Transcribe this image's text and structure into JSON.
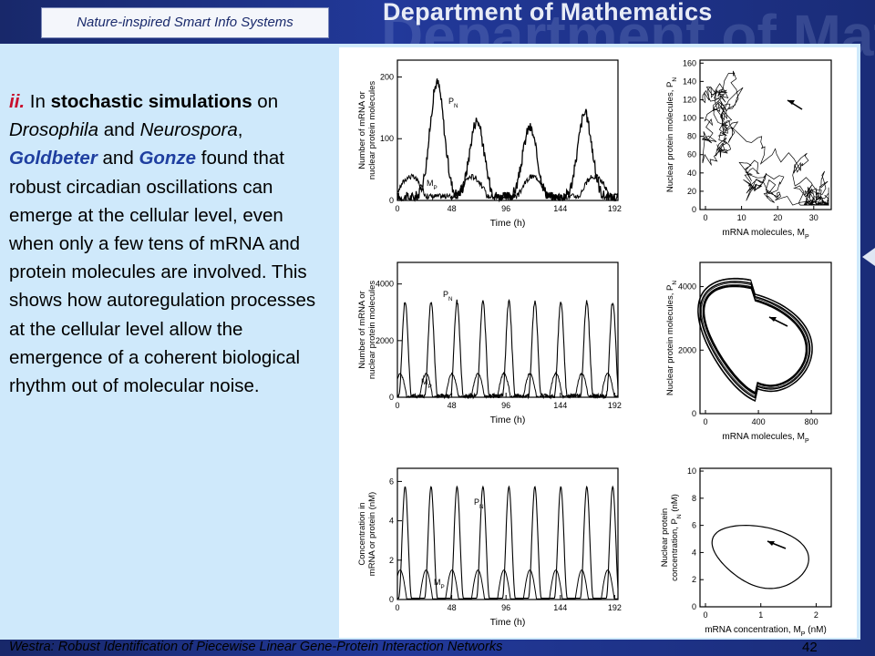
{
  "header": {
    "label": "Nature-inspired Smart Info Systems",
    "department": "Department of Mathematics"
  },
  "paragraph": {
    "numeral": "ii.",
    "t1": " In ",
    "t2": "stochastic simulations",
    "t3": " on ",
    "t4": "Drosophila",
    "t5": " and ",
    "t6": "Neurospora",
    "t7": ", ",
    "t8": "Goldbeter",
    "t9": " and ",
    "t10": "Gonze",
    "t11": " found that robust circadian oscillations can emerge at the cellular level, even when only a few tens of mRNA and protein molecules are involved. This shows how autoregulation processes at the cellular level allow the emergence of a coherent biological rhythm out of molecular noise."
  },
  "footer": {
    "citation": "Westra: Robust Identification of Piecewise Linear Gene-Protein Interaction Networks",
    "page": "42"
  },
  "figure": {
    "time_plots": [
      {
        "ylabel1": "Number of mRNA or",
        "ylabel2": "nuclear protein molecules",
        "yticks": [
          "0",
          "100",
          "200"
        ],
        "xticks": [
          "0",
          "48",
          "96",
          "144",
          "192"
        ],
        "xlabel": "Time (h)",
        "label_pn": "P",
        "label_pn_sub": "N",
        "label_mp": "M",
        "label_mp_sub": "P"
      },
      {
        "ylabel1": "Number of mRNA or",
        "ylabel2": "nuclear protein molecules",
        "yticks": [
          "0",
          "2000",
          "4000"
        ],
        "xticks": [
          "0",
          "48",
          "96",
          "144",
          "192"
        ],
        "xlabel": "Time (h)",
        "label_pn": "P",
        "label_pn_sub": "N",
        "label_mp": "M",
        "label_mp_sub": "P"
      },
      {
        "ylabel1": "Concentration in",
        "ylabel2": "mRNA or protein (nM)",
        "yticks": [
          "0",
          "2",
          "4",
          "6"
        ],
        "xticks": [
          "0",
          "48",
          "96",
          "144",
          "192"
        ],
        "xlabel": "Time (h)",
        "label_pn": "P",
        "label_pn_sub": "N",
        "label_mp": "M",
        "label_mp_sub": "P"
      }
    ],
    "phase_plots": [
      {
        "ylabel1": "Nuclear protein molecules, P",
        "ylabel1_sub": "N",
        "ylabel2": "",
        "yticks": [
          "0",
          "20",
          "40",
          "60",
          "80",
          "100",
          "120",
          "140",
          "160"
        ],
        "xticks": [
          "0",
          "10",
          "20",
          "30"
        ],
        "xlabel": "mRNA molecules, M",
        "xlabel_sub": "P"
      },
      {
        "ylabel1": "Nuclear protein molecules, P",
        "ylabel1_sub": "N",
        "ylabel2": "",
        "yticks": [
          "0",
          "2000",
          "4000"
        ],
        "xticks": [
          "0",
          "400",
          "800"
        ],
        "xlabel": "mRNA molecules, M",
        "xlabel_sub": "P"
      },
      {
        "ylabel1": "Nuclear protein",
        "ylabel1_sub": "",
        "ylabel2": "concentration, P",
        "ylabel2_sub": "N",
        "ylabel2_tail": " (nM)",
        "yticks": [
          "0",
          "2",
          "4",
          "6",
          "8",
          "10"
        ],
        "xticks": [
          "0",
          "1",
          "2"
        ],
        "xlabel": "mRNA concentration, M",
        "xlabel_sub": "P",
        "xlabel_tail": " (nM)"
      }
    ]
  },
  "colors": {
    "accent_red": "#c8102e",
    "accent_blue": "#1f3fa0",
    "panel": "#cfe9fb"
  }
}
